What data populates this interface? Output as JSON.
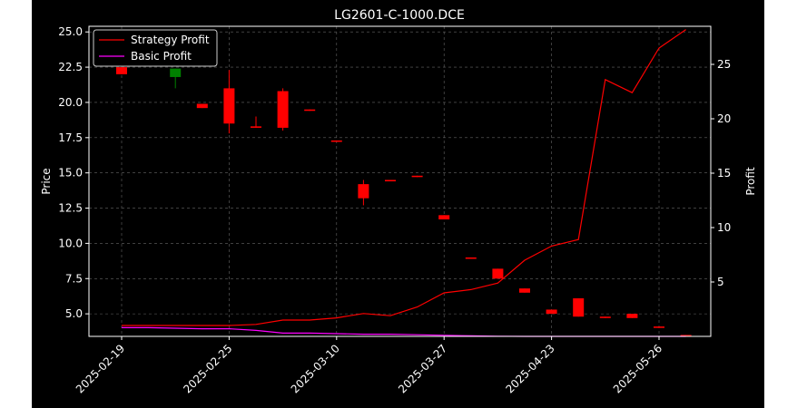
{
  "chart_data": {
    "type": "candlestick+line",
    "title": "LG2601-C-1000.DCE",
    "ylabel_left": "Price",
    "ylabel_right": "Profit",
    "ylim_left": [
      3.4,
      25.4
    ],
    "ylim_right": [
      0.0,
      28.5
    ],
    "grid": true,
    "legend_position": "top-left",
    "x_tick_labels": [
      "2025-02-19",
      "2025-02-25",
      "2025-03-10",
      "2025-03-27",
      "2025-04-23",
      "2025-05-26"
    ],
    "y_ticks_left": [
      "5.0",
      "7.5",
      "10.0",
      "12.5",
      "15.0",
      "17.5",
      "20.0",
      "22.5",
      "25.0"
    ],
    "y_ticks_right": [
      "5",
      "10",
      "15",
      "20",
      "25"
    ],
    "candles": [
      {
        "i": 0,
        "open": 22.5,
        "close": 22.0,
        "high": 22.5,
        "low": 22.0
      },
      {
        "i": 2,
        "open": 21.8,
        "close": 22.4,
        "high": 22.4,
        "low": 21.0
      },
      {
        "i": 3,
        "open": 19.9,
        "close": 19.6,
        "high": 19.9,
        "low": 19.6
      },
      {
        "i": 4,
        "open": 21.0,
        "close": 18.5,
        "high": 22.3,
        "low": 17.8
      },
      {
        "i": 5,
        "open": 18.3,
        "close": 18.2,
        "high": 19.0,
        "low": 18.2
      },
      {
        "i": 6,
        "open": 20.8,
        "close": 18.2,
        "high": 21.0,
        "low": 18.0
      },
      {
        "i": 7,
        "open": 19.5,
        "close": 19.4,
        "high": 19.5,
        "low": 19.4
      },
      {
        "i": 8,
        "open": 17.3,
        "close": 17.2,
        "high": 17.3,
        "low": 17.2
      },
      {
        "i": 9,
        "open": 14.2,
        "close": 13.2,
        "high": 14.5,
        "low": 12.7
      },
      {
        "i": 10,
        "open": 14.5,
        "close": 14.4,
        "high": 14.5,
        "low": 14.4
      },
      {
        "i": 11,
        "open": 14.8,
        "close": 14.7,
        "high": 14.8,
        "low": 14.7
      },
      {
        "i": 12,
        "open": 12.0,
        "close": 11.7,
        "high": 12.0,
        "low": 11.7
      },
      {
        "i": 13,
        "open": 9.0,
        "close": 8.9,
        "high": 9.0,
        "low": 8.9
      },
      {
        "i": 14,
        "open": 8.2,
        "close": 7.5,
        "high": 8.2,
        "low": 7.5
      },
      {
        "i": 15,
        "open": 6.8,
        "close": 6.5,
        "high": 6.8,
        "low": 6.5
      },
      {
        "i": 16,
        "open": 5.3,
        "close": 5.0,
        "high": 5.3,
        "low": 5.0
      },
      {
        "i": 17,
        "open": 6.1,
        "close": 4.8,
        "high": 6.1,
        "low": 4.8
      },
      {
        "i": 18,
        "open": 4.8,
        "close": 4.7,
        "high": 4.8,
        "low": 4.7
      },
      {
        "i": 19,
        "open": 5.0,
        "close": 4.7,
        "high": 5.0,
        "low": 4.7
      },
      {
        "i": 20,
        "open": 4.1,
        "close": 4.0,
        "high": 4.1,
        "low": 4.0
      },
      {
        "i": 21,
        "open": 3.5,
        "close": 3.4,
        "high": 3.5,
        "low": 3.4
      }
    ],
    "series": [
      {
        "name": "Strategy Profit",
        "color": "#ff0000",
        "values": [
          1.0,
          1.0,
          1.0,
          1.0,
          1.0,
          1.1,
          1.5,
          1.5,
          1.7,
          2.1,
          1.9,
          2.7,
          4.0,
          4.3,
          4.9,
          7.0,
          8.3,
          8.9,
          23.6,
          22.4,
          26.5,
          28.2
        ]
      },
      {
        "name": "Basic Profit",
        "color": "#ff00ff",
        "values": [
          0.8,
          0.8,
          0.75,
          0.7,
          0.7,
          0.55,
          0.3,
          0.3,
          0.25,
          0.2,
          0.2,
          0.15,
          0.1,
          0.05,
          0.02,
          0.0,
          0.0,
          0.0,
          0.0,
          0.0,
          0.0,
          0.0
        ]
      }
    ],
    "colors": {
      "background": "#000000",
      "page": "#ffffff",
      "up": "#008000",
      "down": "#ff0000",
      "grid": "#666666",
      "text": "#ffffff"
    }
  }
}
